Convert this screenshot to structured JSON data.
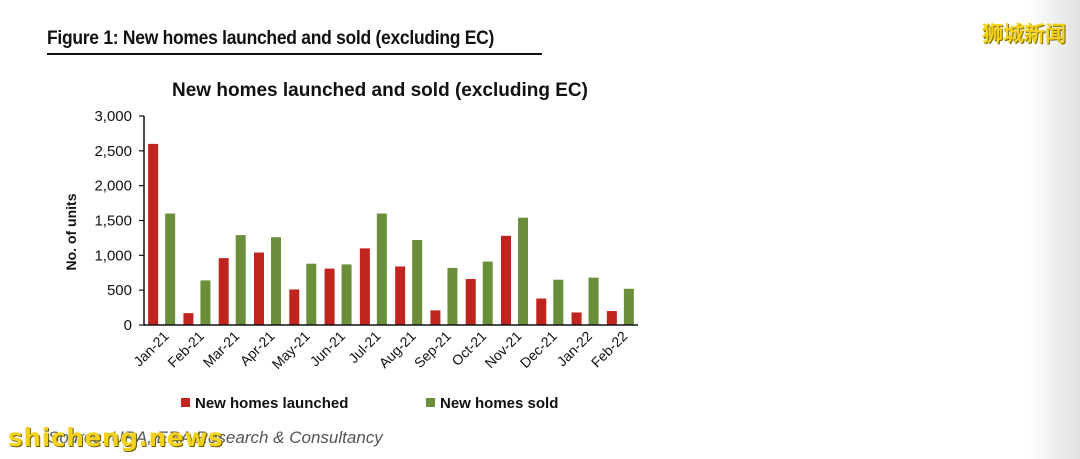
{
  "figure_title": "Figure 1: New homes launched and sold (excluding EC)",
  "watermark_top": "狮城新闻",
  "watermark_bottom": "shicheng.news",
  "source_text": "Source: URA, ERA Research & Consultancy",
  "colors": {
    "launched": "#c0241f",
    "sold": "#6b8e3b",
    "axis": "#111111"
  },
  "chart_data": {
    "type": "bar",
    "title": "New homes launched and sold (excluding EC)",
    "xlabel": "",
    "ylabel": "No. of units",
    "ylim": [
      0,
      3000
    ],
    "yticks": [
      0,
      500,
      1000,
      1500,
      2000,
      2500,
      3000
    ],
    "ytick_labels": [
      "0",
      "500",
      "1,000",
      "1,500",
      "2,000",
      "2,500",
      "3,000"
    ],
    "categories": [
      "Jan-21",
      "Feb-21",
      "Mar-21",
      "Apr-21",
      "May-21",
      "Jun-21",
      "Jul-21",
      "Aug-21",
      "Sep-21",
      "Oct-21",
      "Nov-21",
      "Dec-21",
      "Jan-22",
      "Feb-22"
    ],
    "series": [
      {
        "name": "New homes launched",
        "values": [
          2600,
          170,
          960,
          1040,
          510,
          810,
          1100,
          840,
          210,
          660,
          1280,
          380,
          180,
          200
        ]
      },
      {
        "name": "New homes sold",
        "values": [
          1600,
          640,
          1290,
          1260,
          880,
          870,
          1600,
          1220,
          820,
          910,
          1540,
          650,
          680,
          520
        ]
      }
    ],
    "legend_position": "bottom",
    "grid": false
  }
}
